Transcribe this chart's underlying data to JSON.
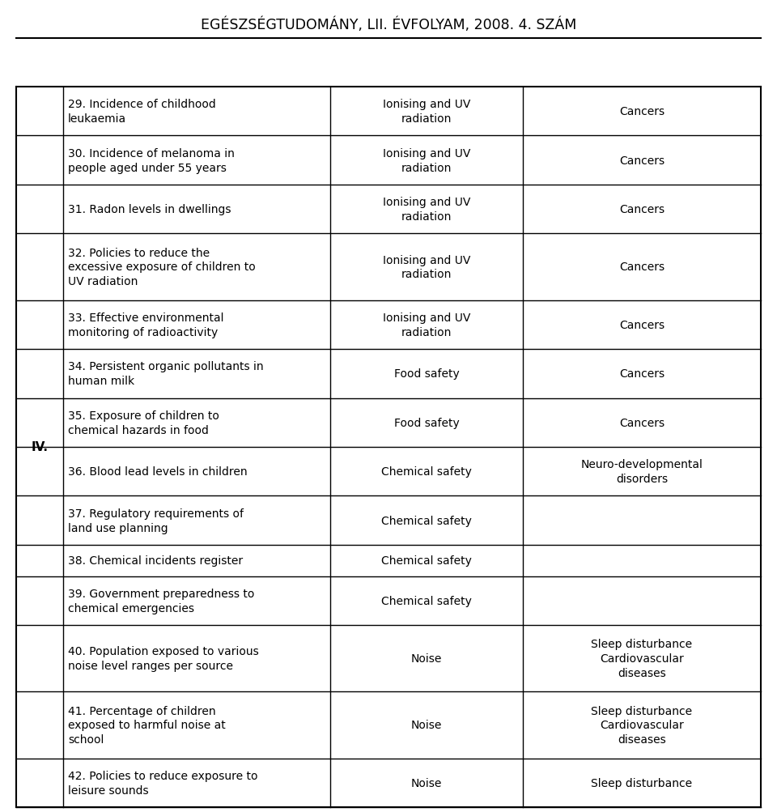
{
  "title": "EGÉSZSÉGTUDOMÁNY, LII. ÉVFOLYAM, 2008. 4. SZÁM",
  "section_label": "IV.",
  "rows": [
    {
      "col1": "29. Incidence of childhood\nleukaemia",
      "col2": "Ionising and UV\nradiation",
      "col3": "Cancers"
    },
    {
      "col1": "30. Incidence of melanoma in\npeople aged under 55 years",
      "col2": "Ionising and UV\nradiation",
      "col3": "Cancers"
    },
    {
      "col1": "31. Radon levels in dwellings",
      "col2": "Ionising and UV\nradiation",
      "col3": "Cancers"
    },
    {
      "col1": "32. Policies to reduce the\nexcessive exposure of children to\nUV radiation",
      "col2": "Ionising and UV\nradiation",
      "col3": "Cancers"
    },
    {
      "col1": "33. Effective environmental\nmonitoring of radioactivity",
      "col2": "Ionising and UV\nradiation",
      "col3": "Cancers"
    },
    {
      "col1": "34. Persistent organic pollutants in\nhuman milk",
      "col2": "Food safety",
      "col3": "Cancers"
    },
    {
      "col1": "35. Exposure of children to\nchemical hazards in food",
      "col2": "Food safety",
      "col3": "Cancers"
    },
    {
      "col1": "36. Blood lead levels in children",
      "col2": "Chemical safety",
      "col3": "Neuro-developmental\ndisorders"
    },
    {
      "col1": "37. Regulatory requirements of\nland use planning",
      "col2": "Chemical safety",
      "col3": ""
    },
    {
      "col1": "38. Chemical incidents register",
      "col2": "Chemical safety",
      "col3": ""
    },
    {
      "col1": "39. Government preparedness to\nchemical emergencies",
      "col2": "Chemical safety",
      "col3": ""
    },
    {
      "col1": "40. Population exposed to various\nnoise level ranges per source",
      "col2": "Noise",
      "col3": "Sleep disturbance\nCardiovascular\ndiseases"
    },
    {
      "col1": "41. Percentage of children\nexposed to harmful noise at\nschool",
      "col2": "Noise",
      "col3": "Sleep disturbance\nCardiovascular\ndiseases"
    },
    {
      "col1": "42. Policies to reduce exposure to\nleisure sounds",
      "col2": "Noise",
      "col3": "Sleep disturbance"
    }
  ],
  "font_size": 10.0,
  "title_font_size": 12.5,
  "bg_color": "#ffffff",
  "text_color": "#000000",
  "line_color": "#000000"
}
